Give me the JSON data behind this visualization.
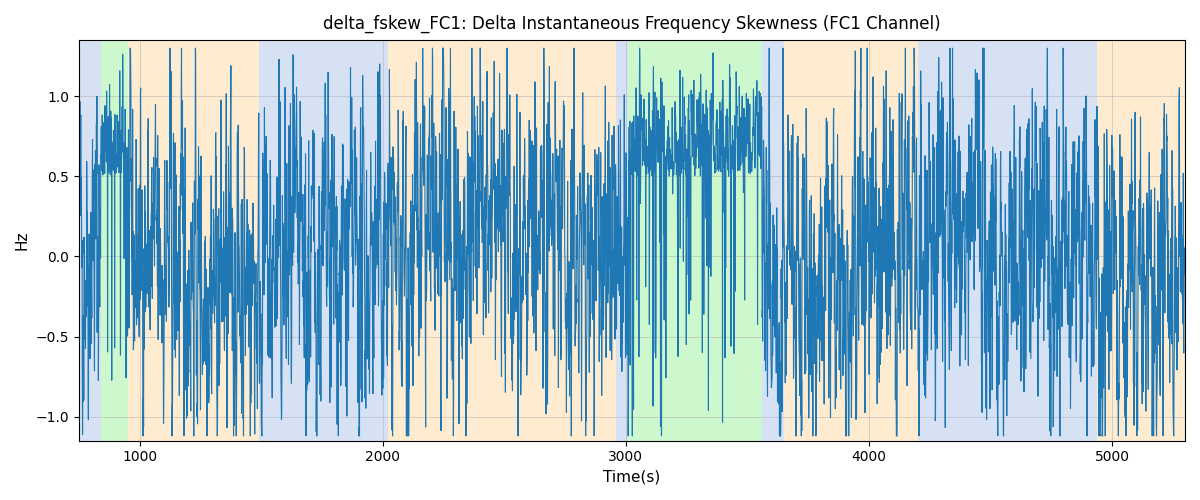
{
  "title": "delta_fskew_FC1: Delta Instantaneous Frequency Skewness (FC1 Channel)",
  "xlabel": "Time(s)",
  "ylabel": "Hz",
  "xlim": [
    750,
    5300
  ],
  "ylim": [
    -1.15,
    1.35
  ],
  "line_color": "#1f77b4",
  "line_width": 0.8,
  "background_bands": [
    {
      "xmin": 750,
      "xmax": 840,
      "color": "#aec6e8",
      "alpha": 0.5
    },
    {
      "xmin": 840,
      "xmax": 950,
      "color": "#90ee90",
      "alpha": 0.45
    },
    {
      "xmin": 950,
      "xmax": 1490,
      "color": "#ffd9a0",
      "alpha": 0.5
    },
    {
      "xmin": 1490,
      "xmax": 2020,
      "color": "#aec6e8",
      "alpha": 0.5
    },
    {
      "xmin": 2020,
      "xmax": 2960,
      "color": "#ffd9a0",
      "alpha": 0.5
    },
    {
      "xmin": 2960,
      "xmax": 3010,
      "color": "#aec6e8",
      "alpha": 0.5
    },
    {
      "xmin": 3010,
      "xmax": 3560,
      "color": "#90ee90",
      "alpha": 0.45
    },
    {
      "xmin": 3560,
      "xmax": 3650,
      "color": "#aec6e8",
      "alpha": 0.5
    },
    {
      "xmin": 3650,
      "xmax": 4200,
      "color": "#ffd9a0",
      "alpha": 0.5
    },
    {
      "xmin": 4200,
      "xmax": 4940,
      "color": "#aec6e8",
      "alpha": 0.5
    },
    {
      "xmin": 4940,
      "xmax": 5300,
      "color": "#ffd9a0",
      "alpha": 0.5
    }
  ],
  "yticks": [
    -1.0,
    -0.5,
    0.0,
    0.5,
    1.0
  ],
  "xticks": [
    1000,
    2000,
    3000,
    4000,
    5000
  ],
  "figsize": [
    12.0,
    5.0
  ],
  "dpi": 100,
  "seed": 42
}
